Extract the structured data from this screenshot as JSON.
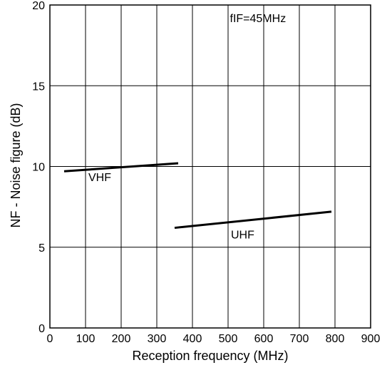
{
  "chart_data": {
    "type": "line",
    "title": "",
    "xlabel": "Reception frequency   (MHz)",
    "ylabel": "NF - Noise figure (dB)",
    "xlim": [
      0,
      900
    ],
    "ylim": [
      0,
      20
    ],
    "xticks": [
      0,
      100,
      200,
      300,
      400,
      500,
      600,
      700,
      800,
      900
    ],
    "yticks": [
      0,
      5,
      10,
      15,
      20
    ],
    "grid": true,
    "legend": "none",
    "colors": {
      "line": "#000000",
      "grid": "#000000",
      "background": "#ffffff"
    },
    "series": [
      {
        "name": "VHF",
        "x": [
          40,
          360
        ],
        "y": [
          9.7,
          10.2
        ]
      },
      {
        "name": "UHF",
        "x": [
          350,
          790
        ],
        "y": [
          6.2,
          7.2
        ]
      }
    ],
    "annotations": [
      {
        "text": "fIF=45MHz",
        "x": 505,
        "y": 18.95
      },
      {
        "text": "VHF",
        "x": 108,
        "y": 9.1
      },
      {
        "text": "UHF",
        "x": 508,
        "y": 5.55
      }
    ]
  }
}
